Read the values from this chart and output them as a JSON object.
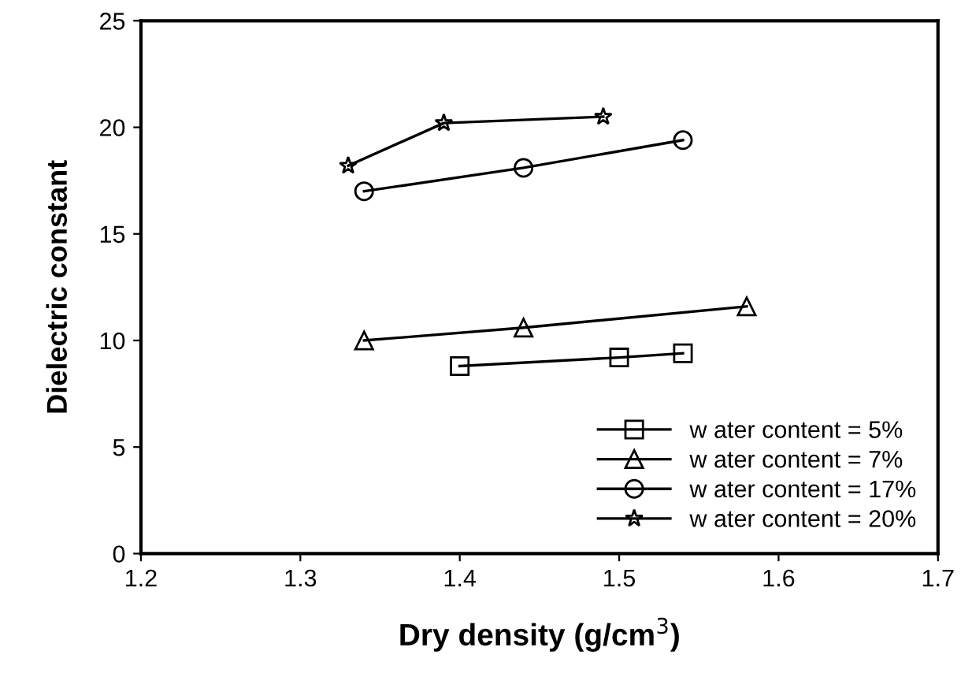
{
  "chart_data": {
    "type": "line",
    "xlabel": "Dry density (g/cm$^{3}$)",
    "ylabel": "Dielectric constant",
    "xlim": [
      1.2,
      1.7
    ],
    "xticks": [
      1.2,
      1.3,
      1.4,
      1.5,
      1.6,
      1.7
    ],
    "ylim": [
      0,
      25
    ],
    "yticks": [
      0,
      5,
      10,
      15,
      20,
      25
    ],
    "grid": false,
    "legend": "bottom right",
    "series": [
      {
        "name": "w ater content = 5%",
        "color": "#000000",
        "marker": "square",
        "x": [
          1.4,
          1.5,
          1.54
        ],
        "values": [
          8.8,
          9.2,
          9.4
        ]
      },
      {
        "name": "w ater content = 7%",
        "color": "#000000",
        "marker": "triangle",
        "x": [
          1.34,
          1.44,
          1.58
        ],
        "values": [
          10.0,
          10.6,
          11.6
        ]
      },
      {
        "name": "w ater content = 17%",
        "color": "#000000",
        "marker": "circle",
        "x": [
          1.34,
          1.44,
          1.54
        ],
        "values": [
          17.0,
          18.1,
          19.4
        ]
      },
      {
        "name": "w ater content = 20%",
        "color": "#000000",
        "marker": "star",
        "x": [
          1.33,
          1.39,
          1.49
        ],
        "values": [
          18.2,
          20.2,
          20.5
        ]
      }
    ]
  }
}
